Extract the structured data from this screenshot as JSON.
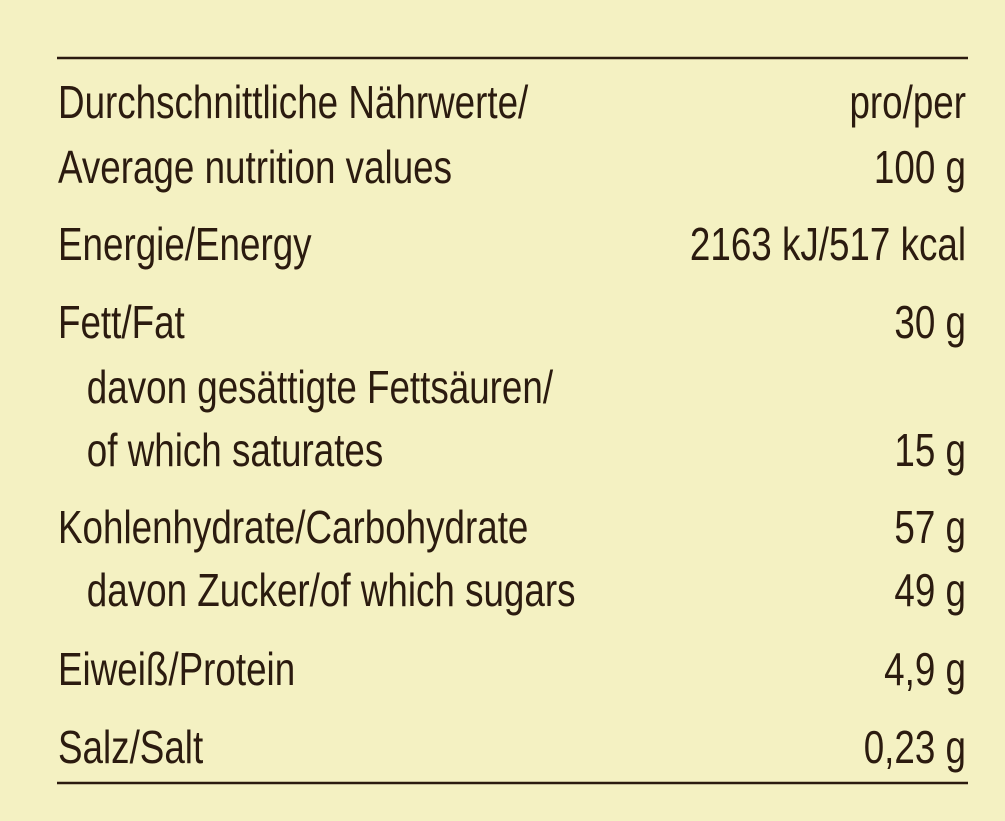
{
  "table": {
    "header": {
      "label": [
        "Durchschnittliche Nährwerte/",
        "Average nutrition values"
      ],
      "value": [
        "pro/per",
        "100 g"
      ]
    },
    "rows": [
      {
        "label": [
          "Energie/Energy"
        ],
        "value": "2163 kJ/517 kcal"
      },
      {
        "label": [
          "Fett/Fat"
        ],
        "value": "30 g"
      },
      {
        "label": [
          "davon gesättigte Fettsäuren/",
          "of which saturates"
        ],
        "value": "15 g"
      },
      {
        "label": [
          "Kohlenhydrate/Carbohydrate"
        ],
        "value": "57 g"
      },
      {
        "label": [
          "davon Zucker/of which sugars"
        ],
        "value": "49 g"
      },
      {
        "label": [
          "Eiweiß/Protein"
        ],
        "value": "4,9 g"
      },
      {
        "label": [
          "Salz/Salt"
        ],
        "value": "0,23 g"
      }
    ]
  }
}
